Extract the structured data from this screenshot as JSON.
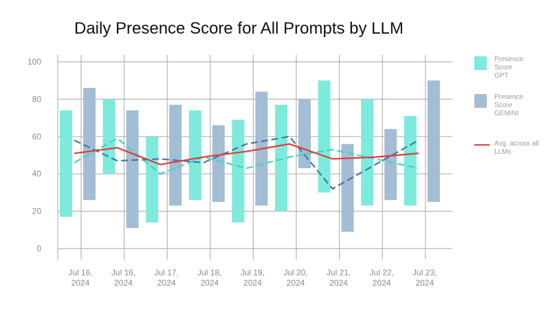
{
  "chart_data": {
    "type": "bar",
    "title": "Daily Presence Score for All Prompts by LLM",
    "xlabel": "",
    "ylabel": "",
    "ylim": [
      0,
      100
    ],
    "yticks": [
      0,
      20,
      40,
      60,
      80,
      100
    ],
    "grid": true,
    "legend_position": "right",
    "categories": [
      [
        "Jul 16,",
        "2024"
      ],
      [
        "Jul 16,",
        "2024"
      ],
      [
        "Jul 17,",
        "2024"
      ],
      [
        "Jul 18,",
        "2024"
      ],
      [
        "Jul 19,",
        "2024"
      ],
      [
        "Jul 20,",
        "2024"
      ],
      [
        "Jul 21,",
        "2024"
      ],
      [
        "Jul 22,",
        "2024"
      ],
      [
        "Jul 23,",
        "2024"
      ]
    ],
    "series": [
      {
        "name": "Presence Score GPT",
        "label_lines": [
          "Presence",
          "Score",
          "GPT"
        ],
        "kind": "floating-bar",
        "color": "#7eeadb",
        "low": [
          17,
          40,
          14,
          26,
          14,
          20,
          30,
          23,
          23
        ],
        "high": [
          74,
          80,
          60,
          74,
          69,
          77,
          90,
          80,
          71
        ]
      },
      {
        "name": "Presence Score GEMINI",
        "label_lines": [
          "Presence",
          "Score",
          "GEMINI"
        ],
        "kind": "floating-bar",
        "color": "#a2bdd4",
        "low": [
          26,
          11,
          23,
          25,
          23,
          43,
          9,
          26,
          25
        ],
        "high": [
          86,
          74,
          77,
          66,
          84,
          80,
          56,
          64,
          90
        ]
      },
      {
        "name": "GPT line",
        "kind": "dashed-line",
        "color": "#3dd6c3",
        "values": [
          46,
          59,
          40,
          49,
          43,
          49,
          53,
          48,
          43
        ]
      },
      {
        "name": "GEMINI line",
        "kind": "dashed-line",
        "color": "#4278a8",
        "values": [
          58,
          47,
          48,
          46,
          56,
          60,
          32,
          45,
          58
        ]
      },
      {
        "name": "Avg. across all LLMs",
        "label_lines": [
          "Avg. across all",
          "LLMs"
        ],
        "kind": "line",
        "color": "#e03a3a",
        "values": [
          51,
          54,
          45,
          49,
          52,
          56,
          48,
          49,
          51
        ]
      }
    ]
  }
}
